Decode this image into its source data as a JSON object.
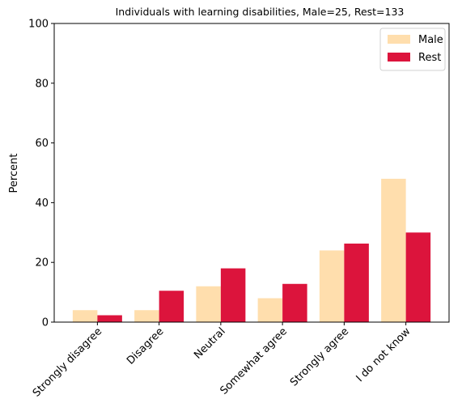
{
  "chart_data": {
    "type": "bar",
    "title": "Individuals with learning disabilities, Male=25, Rest=133",
    "xlabel": "",
    "ylabel": "Percent",
    "ylim": [
      0,
      100
    ],
    "yticks": [
      0,
      20,
      40,
      60,
      80,
      100
    ],
    "categories": [
      "Strongly disagree",
      "Disagree",
      "Neutral",
      "Somewhat agree",
      "Strongly agree",
      "I do not know"
    ],
    "series": [
      {
        "name": "Male",
        "color": "#FFDEAD",
        "values": [
          4,
          4,
          12,
          8,
          24,
          48
        ]
      },
      {
        "name": "Rest",
        "color": "#DC143C",
        "values": [
          2.3,
          10.5,
          18,
          12.8,
          26.3,
          30
        ]
      }
    ],
    "legend_position": "top-right",
    "grid": false
  }
}
